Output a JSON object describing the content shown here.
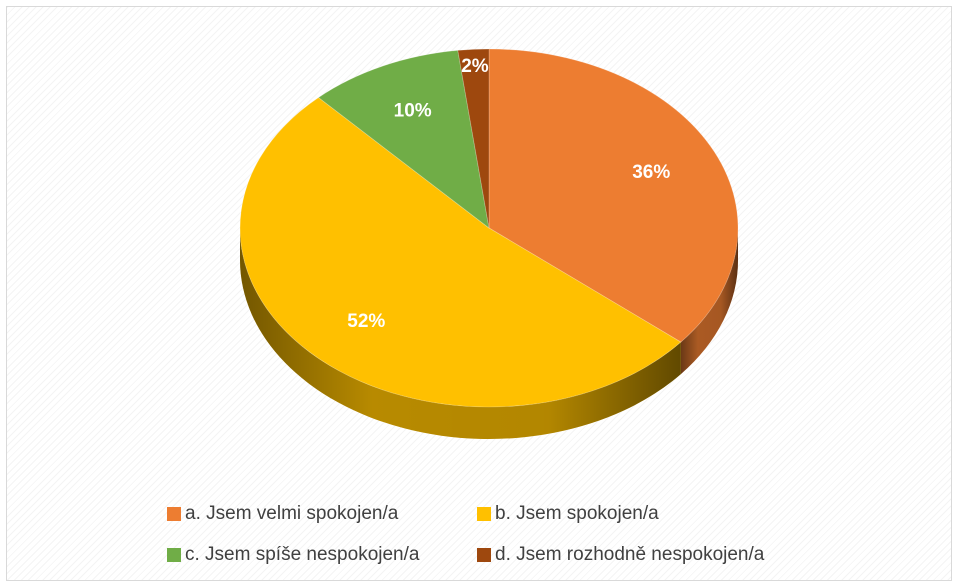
{
  "chart_data": {
    "type": "pie",
    "title": "",
    "categories": [
      "a. Jsem velmi spokojen/a",
      "b. Jsem spokojen/a",
      "c. Jsem spíše nespokojen/a",
      "d. Jsem rozhodně nespokojen/a"
    ],
    "values": [
      36,
      52,
      10,
      2
    ],
    "data_labels": [
      "36%",
      "52%",
      "10%",
      "2%"
    ],
    "colors": [
      "#ED7D31",
      "#FFC000",
      "#70AD47",
      "#9E480E"
    ],
    "legend_position": "bottom",
    "style": "3d"
  }
}
